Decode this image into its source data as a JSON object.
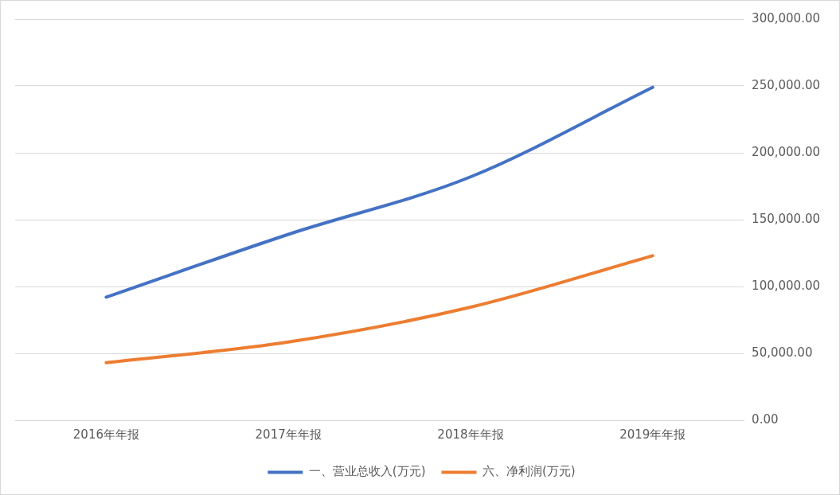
{
  "chart_data": {
    "type": "line",
    "categories": [
      "2016年年报",
      "2017年年报",
      "2018年年报",
      "2019年年报"
    ],
    "series": [
      {
        "name": "一、营业总收入(万元)",
        "color": "#4472c4",
        "values": [
          92000,
          139000,
          182000,
          249000
        ]
      },
      {
        "name": "六、净利润(万元)",
        "color": "#ed7d31",
        "values": [
          43000,
          58500,
          84500,
          123000
        ]
      }
    ],
    "ylim": [
      0,
      300000
    ],
    "yticks": [
      {
        "value": 0,
        "label": "0.00"
      },
      {
        "value": 50000,
        "label": "50,000.00"
      },
      {
        "value": 100000,
        "label": "100,000.00"
      },
      {
        "value": 150000,
        "label": "150,000.00"
      },
      {
        "value": 200000,
        "label": "200,000.00"
      },
      {
        "value": 250000,
        "label": "250,000.00"
      },
      {
        "value": 300000,
        "label": "300,000.00"
      }
    ],
    "grid": "y",
    "legend": "bottom",
    "marker": "none",
    "line_style": "solid"
  }
}
